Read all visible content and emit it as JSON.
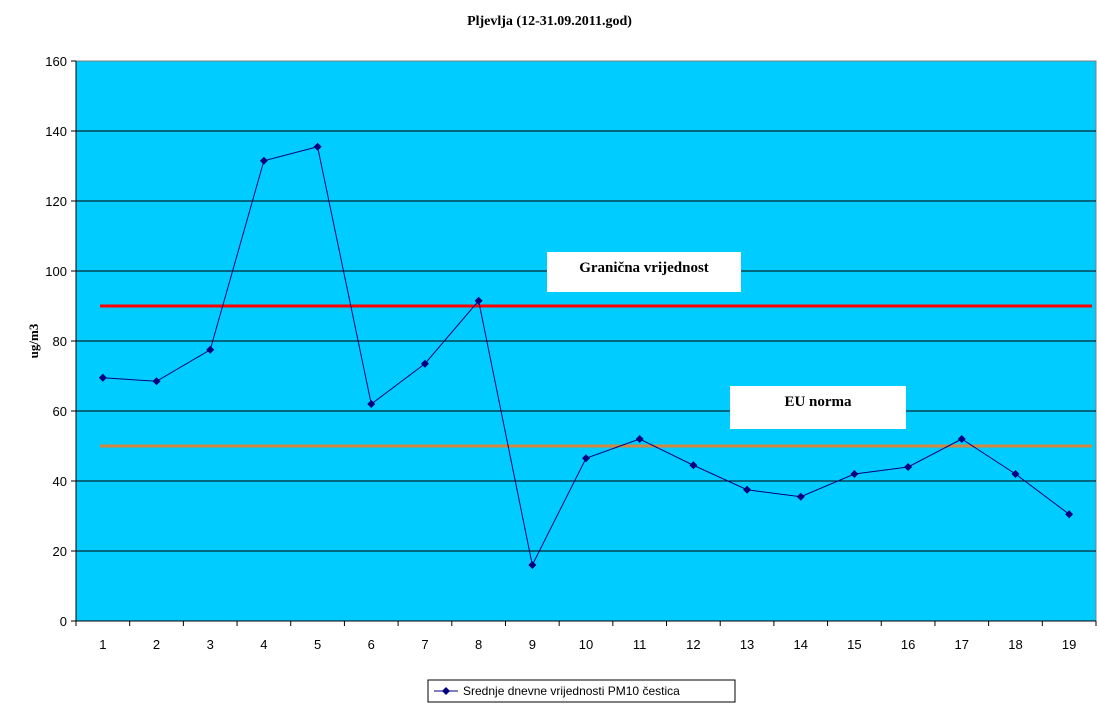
{
  "chart_data": {
    "type": "line",
    "title": "Pljevlja (12-31.09.2011.god)",
    "xlabel": "",
    "ylabel": "ug/m3",
    "categories": [
      "1",
      "2",
      "3",
      "4",
      "5",
      "6",
      "7",
      "8",
      "9",
      "10",
      "11",
      "12",
      "13",
      "14",
      "15",
      "16",
      "17",
      "18",
      "19"
    ],
    "ylim": [
      0,
      160
    ],
    "yticks": [
      0,
      20,
      40,
      60,
      80,
      100,
      120,
      140,
      160
    ],
    "grid": true,
    "series": [
      {
        "name": "Srednje dnevne vrijednosti PM10 čestica",
        "values": [
          69.5,
          68.5,
          77.5,
          131.5,
          135.5,
          62,
          73.5,
          91.5,
          16,
          46.5,
          52,
          44.5,
          37.5,
          35.5,
          42,
          44,
          52,
          42,
          30.5
        ],
        "color": "#000080",
        "marker": "diamond"
      }
    ],
    "reference_lines": [
      {
        "label": "Granična vrijednost",
        "value": 90,
        "color": "#ff0000"
      },
      {
        "label": "EU norma",
        "value": 50,
        "color": "#d2893f"
      }
    ],
    "legend_position": "bottom",
    "plot_background": "#00ccff"
  }
}
